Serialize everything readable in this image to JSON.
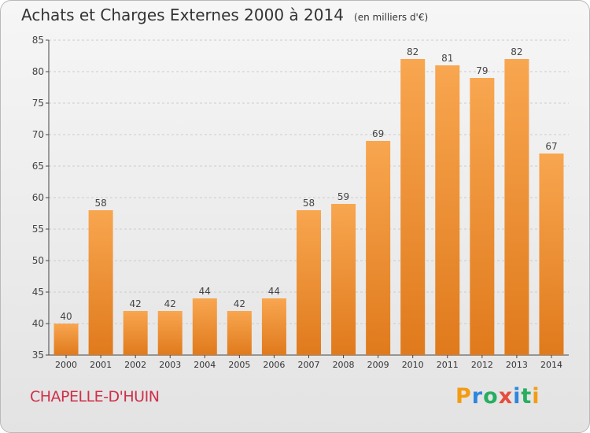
{
  "title": "Achats et Charges Externes 2000 à 2014",
  "unit_label": "(en milliers d'€)",
  "commune": "CHAPELLE-D'HUIN",
  "logo": {
    "letters": [
      "P",
      "r",
      "o",
      "x",
      "i",
      "t",
      "i"
    ],
    "colors": [
      "#f39c12",
      "#2e86de",
      "#27ae60",
      "#e74c3c",
      "#2e86de",
      "#27ae60",
      "#f39c12"
    ]
  },
  "colors": {
    "bar_light": "#f8a650",
    "bar_dark": "#e07a1c",
    "grid": "#cccccc",
    "axis": "#444444",
    "commune": "#d0304a"
  },
  "chart_data": {
    "type": "bar",
    "title": "Achats et Charges Externes 2000 à 2014",
    "categories": [
      "2000",
      "2001",
      "2002",
      "2003",
      "2004",
      "2005",
      "2006",
      "2007",
      "2008",
      "2009",
      "2010",
      "2011",
      "2012",
      "2013",
      "2014"
    ],
    "values": [
      40,
      58,
      42,
      42,
      44,
      42,
      44,
      58,
      59,
      69,
      82,
      81,
      79,
      82,
      67
    ],
    "ylim": [
      35,
      85
    ],
    "yticks": [
      35,
      40,
      45,
      50,
      55,
      60,
      65,
      70,
      75,
      80,
      85
    ],
    "grid": true,
    "data_labels": true
  }
}
